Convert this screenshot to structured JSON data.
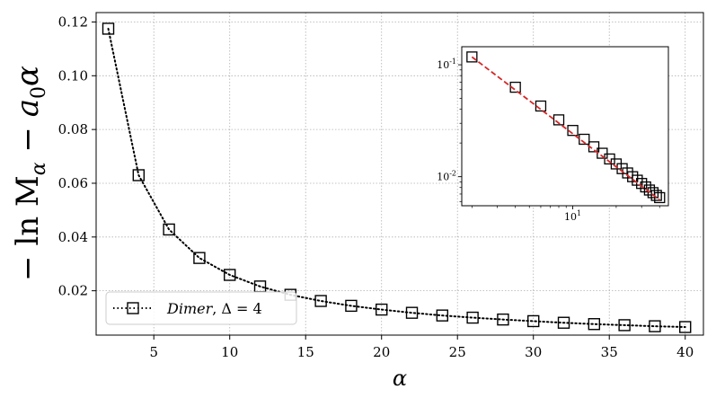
{
  "chart_data": [
    {
      "type": "line",
      "xlabel": "α",
      "ylabel": "− ln M_α − a_0 α",
      "ylabel_parts": {
        "main": "− ln M",
        "sub1": "α",
        "mid": " − a",
        "sub2": "0",
        "end": "α"
      },
      "xlim": [
        1.2,
        41.2
      ],
      "ylim": [
        0.0035,
        0.1235
      ],
      "xticks": [
        5,
        10,
        15,
        20,
        25,
        30,
        35,
        40
      ],
      "xtick_labels": [
        "5",
        "10",
        "15",
        "20",
        "25",
        "30",
        "35",
        "40"
      ],
      "yticks": [
        0.02,
        0.04,
        0.06,
        0.08,
        0.1,
        0.12
      ],
      "ytick_labels": [
        "0.02",
        "0.04",
        "0.06",
        "0.08",
        "0.10",
        "0.12"
      ],
      "grid": true,
      "legend_placement": "bottom-left",
      "series": [
        {
          "name": "Dimer, Δ = 4",
          "name_parts": {
            "italic": "Dimer",
            "rest": ", Δ = 4"
          },
          "marker": "square",
          "line": "dotted",
          "color": "#000000",
          "x": [
            2,
            4,
            6,
            8,
            10,
            12,
            14,
            16,
            18,
            20,
            22,
            24,
            26,
            28,
            30,
            32,
            34,
            36,
            38,
            40
          ],
          "y": [
            0.1175,
            0.063,
            0.0428,
            0.0322,
            0.0259,
            0.0216,
            0.0185,
            0.0162,
            0.0144,
            0.013,
            0.0118,
            0.0108,
            0.01,
            0.0093,
            0.0087,
            0.0081,
            0.0076,
            0.0072,
            0.0068,
            0.0065
          ]
        }
      ]
    },
    {
      "type": "line",
      "scale": "log-log",
      "xlim": [
        1.7,
        46
      ],
      "ylim": [
        0.0055,
        0.145
      ],
      "xticks": [
        10
      ],
      "xtick_labels": [
        "10^1"
      ],
      "yticks": [
        0.01,
        0.1
      ],
      "ytick_labels": [
        "10^-2",
        "10^-1"
      ],
      "grid": false,
      "series": [
        {
          "marker": "square",
          "line": "none",
          "color": "#000000",
          "x": [
            2,
            4,
            6,
            8,
            10,
            12,
            14,
            16,
            18,
            20,
            22,
            24,
            26,
            28,
            30,
            32,
            34,
            36,
            38,
            40
          ],
          "y": [
            0.1175,
            0.063,
            0.0428,
            0.0322,
            0.0259,
            0.0216,
            0.0185,
            0.0162,
            0.0144,
            0.013,
            0.0118,
            0.0108,
            0.01,
            0.0093,
            0.0087,
            0.0081,
            0.0076,
            0.0072,
            0.0068,
            0.0065
          ]
        },
        {
          "marker": "none",
          "line": "dashed",
          "color": "#d62728",
          "x": [
            2,
            40
          ],
          "y": [
            0.1175,
            0.0062
          ]
        }
      ]
    }
  ]
}
